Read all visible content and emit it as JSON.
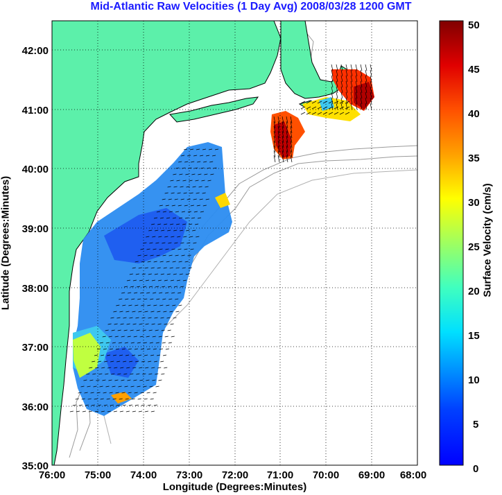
{
  "title": "Mid-Atlantic Raw Velocities (1 Day Avg) 2008/03/28 1200 GMT",
  "x_axis": {
    "label": "Longitude (Degrees:Minutes)",
    "ticks": [
      "76:00",
      "75:00",
      "74:00",
      "73:00",
      "72:00",
      "71:00",
      "70:00",
      "69:00",
      "68:00"
    ]
  },
  "y_axis": {
    "label": "Latitude (Degrees:Minutes)",
    "ticks": [
      "35:00",
      "36:00",
      "37:00",
      "38:00",
      "39:00",
      "40:00",
      "41:00",
      "42:00"
    ]
  },
  "colorbar": {
    "label": "Surface Velocity (cm/s)",
    "ticks": [
      "0",
      "5",
      "10",
      "15",
      "20",
      "25",
      "30",
      "35",
      "40",
      "45",
      "50"
    ],
    "min": 0,
    "max": 50,
    "colormap": "jet"
  },
  "map": {
    "lon_range": [
      -76,
      -68
    ],
    "lat_range": [
      35,
      42.5
    ],
    "grid": true,
    "land_color": "#5cf0aa",
    "ocean_color": "#ffffff",
    "contour_color": "#9a9a9a"
  }
}
